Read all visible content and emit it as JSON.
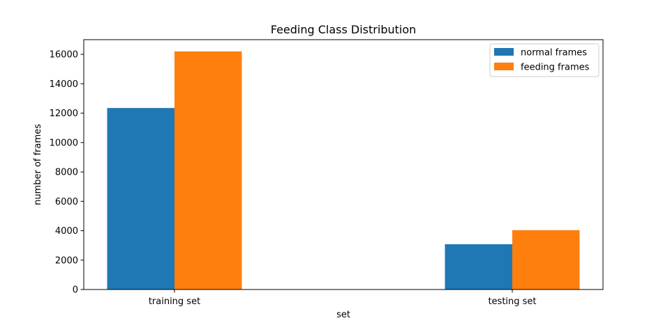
{
  "chart_data": {
    "type": "bar",
    "title": "Feeding Class Distribution",
    "xlabel": "set",
    "ylabel": "number of frames",
    "categories": [
      "training set",
      "testing set"
    ],
    "series": [
      {
        "name": "normal frames",
        "color": "#1f77b4",
        "values": [
          12350,
          3080
        ]
      },
      {
        "name": "feeding frames",
        "color": "#ff7f0e",
        "values": [
          16200,
          4040
        ]
      }
    ],
    "ylim": [
      0,
      17000
    ],
    "yticks": [
      0,
      2000,
      4000,
      6000,
      8000,
      10000,
      12000,
      14000,
      16000
    ],
    "grid": false,
    "legend_position": "top-right"
  }
}
